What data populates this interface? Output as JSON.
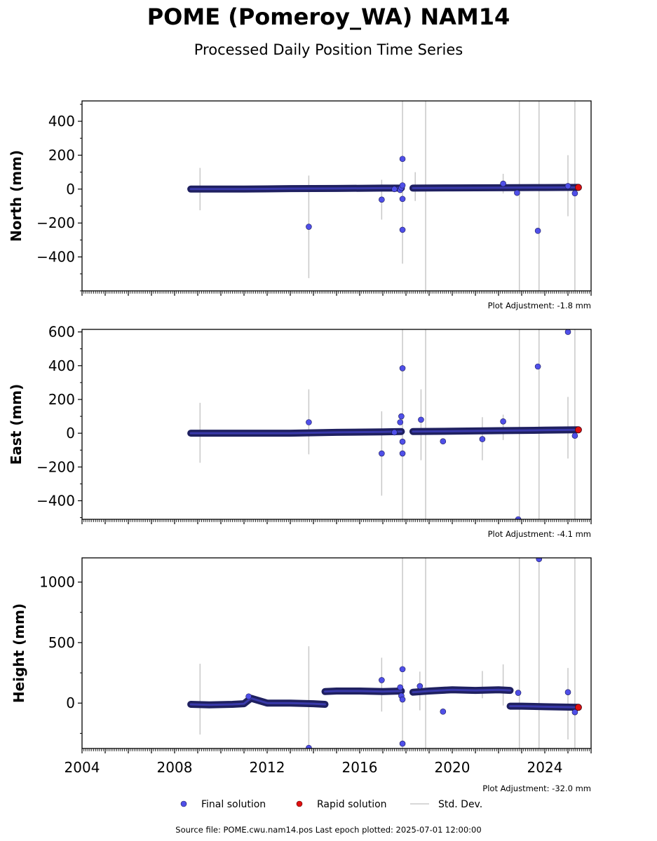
{
  "figure": {
    "title": "POME (Pomeroy_WA) NAM14",
    "subtitle": "Processed Daily Position Time Series",
    "source_note": "Source file: POME.cwu.nam14.pos  Last epoch plotted: 2025-07-01 12:00:00"
  },
  "legend": {
    "placement": "bottom-center",
    "items": [
      {
        "label": "Final solution",
        "color": "#4f4fe8",
        "kind": "dot"
      },
      {
        "label": "Rapid solution",
        "color": "#e01010",
        "kind": "dot"
      },
      {
        "label": "Std. Dev.",
        "color": "#cccccc",
        "kind": "line"
      }
    ]
  },
  "colors": {
    "final": "#4f4fe8",
    "final_edge": "#1a1a55",
    "rapid": "#e01010",
    "stddev": "#c8c8c8",
    "track": "#1f2060"
  },
  "chart_data": [
    {
      "type": "scatter",
      "ylabel": "North (mm)",
      "adjustment_note": "Plot Adjustment: -1.8 mm",
      "xlim": [
        2004.0,
        2026.0
      ],
      "ylim": [
        -600,
        520
      ],
      "yticks": [
        400,
        200,
        0,
        -200,
        -400
      ],
      "ytick_labels": [
        "400",
        "200",
        "0",
        "−200",
        "−400"
      ],
      "yminor_step": 100,
      "track_segments": [
        {
          "x": [
            2008.7,
            2011.0,
            2013.0,
            2015.0,
            2017.0,
            2017.8
          ],
          "y": [
            0,
            0,
            3,
            4,
            6,
            6
          ]
        },
        {
          "x": [
            2018.3,
            2020.0,
            2022.0,
            2024.0,
            2025.45
          ],
          "y": [
            6,
            7,
            8,
            9,
            10
          ]
        }
      ],
      "outliers": [
        {
          "x": 2013.8,
          "y": -222
        },
        {
          "x": 2016.95,
          "y": -62
        },
        {
          "x": 2017.75,
          "y": -5
        },
        {
          "x": 2017.8,
          "y": 8
        },
        {
          "x": 2017.85,
          "y": 22
        },
        {
          "x": 2017.85,
          "y": 178
        },
        {
          "x": 2017.85,
          "y": -58
        },
        {
          "x": 2017.85,
          "y": -240
        },
        {
          "x": 2017.5,
          "y": 0
        },
        {
          "x": 2022.2,
          "y": 32
        },
        {
          "x": 2022.8,
          "y": -22
        },
        {
          "x": 2023.7,
          "y": -246
        },
        {
          "x": 2025.0,
          "y": 18
        },
        {
          "x": 2025.3,
          "y": -25
        }
      ],
      "rapid": [
        {
          "x": 2025.45,
          "y": 10
        }
      ],
      "stddev_bars": [
        {
          "x": 2009.1,
          "lo": -125,
          "hi": 125
        },
        {
          "x": 2013.8,
          "lo": -525,
          "hi": 80
        },
        {
          "x": 2016.95,
          "lo": -180,
          "hi": 55
        },
        {
          "x": 2017.85,
          "lo": -440,
          "hi": 520
        },
        {
          "x": 2018.4,
          "lo": -70,
          "hi": 100
        },
        {
          "x": 2018.85,
          "lo": -600,
          "hi": 520
        },
        {
          "x": 2022.2,
          "lo": -25,
          "hi": 90
        },
        {
          "x": 2022.9,
          "lo": -600,
          "hi": 520
        },
        {
          "x": 2023.75,
          "lo": -600,
          "hi": 520
        },
        {
          "x": 2025.0,
          "lo": -160,
          "hi": 200
        },
        {
          "x": 2025.3,
          "lo": -600,
          "hi": 520
        }
      ]
    },
    {
      "type": "scatter",
      "ylabel": "East (mm)",
      "adjustment_note": "Plot Adjustment: -4.1 mm",
      "xlim": [
        2004.0,
        2026.0
      ],
      "ylim": [
        -510,
        615
      ],
      "yticks": [
        600,
        400,
        200,
        0,
        -200,
        -400
      ],
      "ytick_labels": [
        "600",
        "400",
        "200",
        "0",
        "−200",
        "−400"
      ],
      "yminor_step": 100,
      "track_segments": [
        {
          "x": [
            2008.7,
            2011.0,
            2013.0,
            2015.0,
            2017.0,
            2017.8
          ],
          "y": [
            0,
            0,
            0,
            5,
            8,
            10
          ]
        },
        {
          "x": [
            2018.3,
            2020.0,
            2022.0,
            2024.0,
            2025.45
          ],
          "y": [
            10,
            12,
            15,
            18,
            20
          ]
        }
      ],
      "outliers": [
        {
          "x": 2013.8,
          "y": 65
        },
        {
          "x": 2016.95,
          "y": -120
        },
        {
          "x": 2017.5,
          "y": 5
        },
        {
          "x": 2017.75,
          "y": 65
        },
        {
          "x": 2017.8,
          "y": 100
        },
        {
          "x": 2017.85,
          "y": 385
        },
        {
          "x": 2017.85,
          "y": -50
        },
        {
          "x": 2017.85,
          "y": -120
        },
        {
          "x": 2018.65,
          "y": 80
        },
        {
          "x": 2019.6,
          "y": -48
        },
        {
          "x": 2021.3,
          "y": -35
        },
        {
          "x": 2022.2,
          "y": 70
        },
        {
          "x": 2022.85,
          "y": -510
        },
        {
          "x": 2023.7,
          "y": 395
        },
        {
          "x": 2025.0,
          "y": 600
        },
        {
          "x": 2025.3,
          "y": -15
        }
      ],
      "rapid": [
        {
          "x": 2025.45,
          "y": 20
        }
      ],
      "stddev_bars": [
        {
          "x": 2009.1,
          "lo": -175,
          "hi": 180
        },
        {
          "x": 2013.8,
          "lo": -125,
          "hi": 260
        },
        {
          "x": 2016.95,
          "lo": -370,
          "hi": 130
        },
        {
          "x": 2017.85,
          "lo": -510,
          "hi": 615
        },
        {
          "x": 2018.65,
          "lo": -160,
          "hi": 260
        },
        {
          "x": 2018.85,
          "lo": -510,
          "hi": 615
        },
        {
          "x": 2021.3,
          "lo": -160,
          "hi": 95
        },
        {
          "x": 2022.2,
          "lo": -40,
          "hi": 110
        },
        {
          "x": 2022.9,
          "lo": -510,
          "hi": 615
        },
        {
          "x": 2023.75,
          "lo": -510,
          "hi": 615
        },
        {
          "x": 2025.0,
          "lo": -150,
          "hi": 215
        },
        {
          "x": 2025.3,
          "lo": -510,
          "hi": 615
        }
      ]
    },
    {
      "type": "scatter",
      "ylabel": "Height (mm)",
      "adjustment_note": "Plot Adjustment: -32.0 mm",
      "xlim": [
        2004.0,
        2026.0
      ],
      "ylim": [
        -375,
        1200
      ],
      "yticks": [
        1000,
        500,
        0
      ],
      "ytick_labels": [
        "1000",
        "500",
        "0"
      ],
      "yminor_step": 250,
      "xticks": [
        2004,
        2008,
        2012,
        2016,
        2020,
        2024
      ],
      "xtick_labels": [
        "2004",
        "2008",
        "2012",
        "2016",
        "2020",
        "2024"
      ],
      "track_segments": [
        {
          "x": [
            2008.7,
            2009.5,
            2010.5,
            2011.0,
            2011.3,
            2012.0,
            2013.0,
            2014.0,
            2014.5
          ],
          "y": [
            -10,
            -15,
            -10,
            -5,
            40,
            0,
            0,
            -5,
            -10
          ]
        },
        {
          "x": [
            2014.5,
            2015.0,
            2016.0,
            2017.0,
            2017.8
          ],
          "y": [
            95,
            100,
            100,
            95,
            100
          ]
        },
        {
          "x": [
            2018.3,
            2019.0,
            2020.0,
            2021.0,
            2022.0,
            2022.5
          ],
          "y": [
            90,
            100,
            110,
            105,
            110,
            105
          ]
        },
        {
          "x": [
            2022.5,
            2023.0,
            2024.0,
            2025.45
          ],
          "y": [
            -25,
            -25,
            -30,
            -35
          ]
        }
      ],
      "outliers": [
        {
          "x": 2011.2,
          "y": 55
        },
        {
          "x": 2013.8,
          "y": -370
        },
        {
          "x": 2016.95,
          "y": 190
        },
        {
          "x": 2017.75,
          "y": 130
        },
        {
          "x": 2017.8,
          "y": 60
        },
        {
          "x": 2017.85,
          "y": 280
        },
        {
          "x": 2017.85,
          "y": 30
        },
        {
          "x": 2017.85,
          "y": -335
        },
        {
          "x": 2018.6,
          "y": 140
        },
        {
          "x": 2019.6,
          "y": -70
        },
        {
          "x": 2022.85,
          "y": 85
        },
        {
          "x": 2023.75,
          "y": 1190
        },
        {
          "x": 2025.0,
          "y": 90
        },
        {
          "x": 2025.3,
          "y": -75
        }
      ],
      "rapid": [
        {
          "x": 2025.45,
          "y": -35
        }
      ],
      "stddev_bars": [
        {
          "x": 2009.1,
          "lo": -260,
          "hi": 325
        },
        {
          "x": 2013.8,
          "lo": -375,
          "hi": 470
        },
        {
          "x": 2016.95,
          "lo": -70,
          "hi": 375
        },
        {
          "x": 2017.85,
          "lo": -375,
          "hi": 1200
        },
        {
          "x": 2018.6,
          "lo": -60,
          "hi": 260
        },
        {
          "x": 2018.85,
          "lo": -375,
          "hi": 1200
        },
        {
          "x": 2021.3,
          "lo": 40,
          "hi": 265
        },
        {
          "x": 2022.2,
          "lo": -20,
          "hi": 320
        },
        {
          "x": 2022.9,
          "lo": -375,
          "hi": 1200
        },
        {
          "x": 2023.75,
          "lo": -375,
          "hi": 1200
        },
        {
          "x": 2025.0,
          "lo": -300,
          "hi": 290
        },
        {
          "x": 2025.3,
          "lo": -375,
          "hi": 1200
        }
      ]
    }
  ]
}
